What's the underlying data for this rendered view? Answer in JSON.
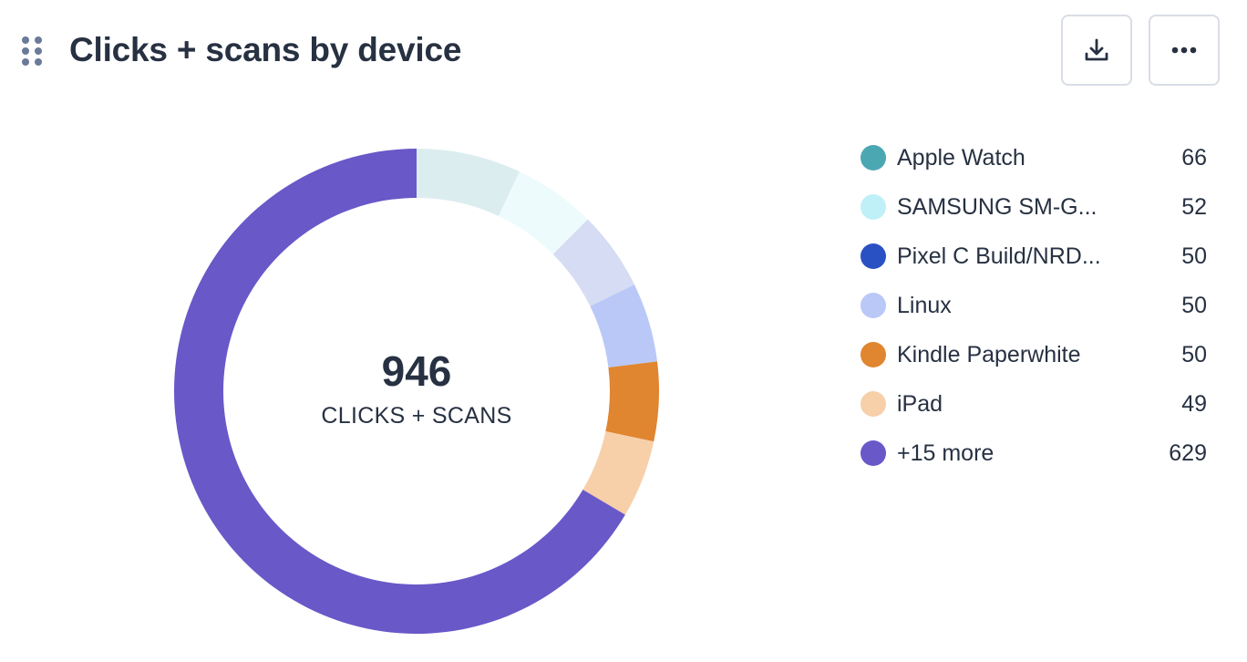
{
  "header": {
    "title": "Clicks + scans by device"
  },
  "toolbar": {
    "download_icon": "download-icon",
    "more_icon": "more-horizontal-icon"
  },
  "chart_data": {
    "type": "pie",
    "variant": "donut",
    "total": "946",
    "total_label": "CLICKS + SCANS",
    "categories": [
      "Apple Watch",
      "SAMSUNG SM-G...",
      "Pixel C Build/NRD...",
      "Linux",
      "Kindle Paperwhite",
      "iPad",
      "+15 more"
    ],
    "values": [
      66,
      52,
      50,
      50,
      50,
      49,
      629
    ],
    "slice_colors": [
      "#dcedf0",
      "#eefbfc",
      "#d5dcf3",
      "#bac8f8",
      "#e08530",
      "#f7cfa9",
      "#6858c8"
    ],
    "legend_colors": [
      "#4ba8b3",
      "#bff0f7",
      "#2a51c4",
      "#bac8f8",
      "#e08530",
      "#f7cfa9",
      "#6858c8"
    ],
    "legend_position": "right"
  }
}
